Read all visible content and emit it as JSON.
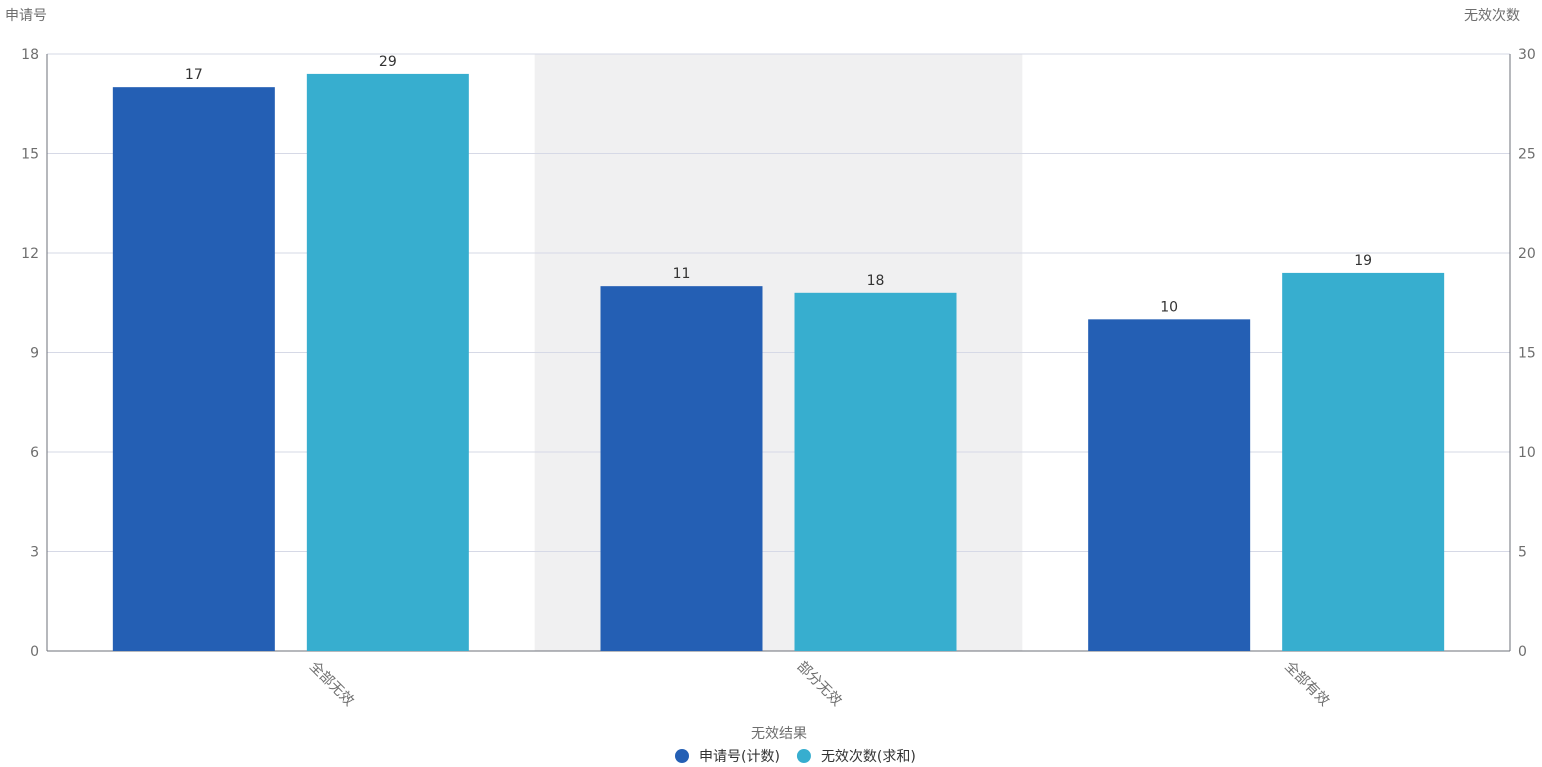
{
  "chart_data": {
    "type": "bar",
    "categories": [
      "全部无效",
      "部分无效",
      "全部有效"
    ],
    "series": [
      {
        "name": "申请号(计数)",
        "values": [
          17,
          11,
          10
        ],
        "axis": "left",
        "color": "#245fb4"
      },
      {
        "name": "无效次数(求和)",
        "values": [
          29,
          18,
          19
        ],
        "axis": "right",
        "color": "#37aecf"
      }
    ],
    "xlabel": "无效结果",
    "ylabel_left": "申请号",
    "ylabel_right": "无效次数",
    "ylim_left": [
      0,
      18
    ],
    "yticks_left": [
      "0",
      "3",
      "6",
      "9",
      "12",
      "15",
      "18"
    ],
    "ylim_right": [
      0,
      30
    ],
    "yticks_right": [
      "0",
      "5",
      "10",
      "15",
      "20",
      "25",
      "30"
    ],
    "highlighted_category": "部分无效",
    "highlight_color": "#f0f0f1",
    "grid": true,
    "legend_position": "bottom-center"
  }
}
